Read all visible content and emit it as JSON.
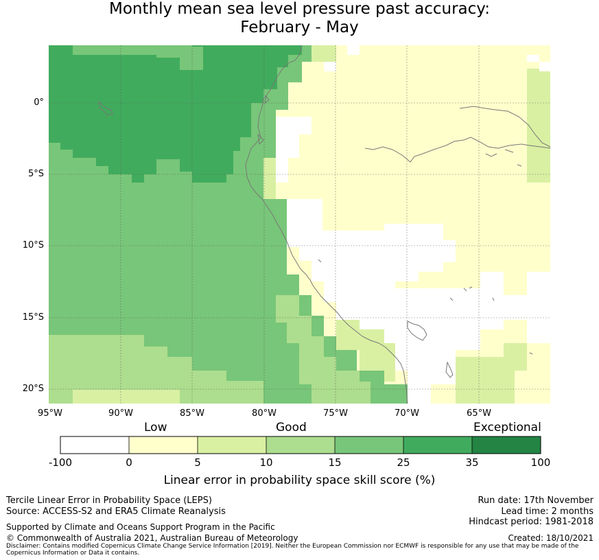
{
  "title": {
    "line1": "Monthly mean sea level pressure past accuracy:",
    "line2": "February - May"
  },
  "map": {
    "lat_range": [
      -21,
      4
    ],
    "lon_range": [
      -95,
      -60.3
    ],
    "lat_ticks": [
      "0°",
      "5°S",
      "10°S",
      "15°S",
      "20°S"
    ],
    "lon_ticks": [
      "95°W",
      "90°W",
      "85°W",
      "80°W",
      "75°W",
      "70°W",
      "65°W"
    ],
    "description_regions": "skill categories by region"
  },
  "legend": {
    "categories": [
      "Low",
      "Good",
      "Exceptional"
    ],
    "ticks": [
      "-100",
      "0",
      "5",
      "10",
      "15",
      "25",
      "35",
      "100"
    ],
    "colors": [
      "#ffffff",
      "#ffffcc",
      "#d9f0a3",
      "#addd8e",
      "#78c679",
      "#41ab5d",
      "#238443"
    ],
    "label": "Linear error in probability space skill score (%)"
  },
  "footer": {
    "left1": "Tercile Linear Error in Probability Space (LEPS)",
    "left2": "Source: ACCESS-S2 and ERA5 Climate Reanalysis",
    "left3": "Supported by Climate and Oceans Support Program in the Pacific",
    "left4": "© Commonwealth of Australia 2021, Australian Bureau of Meteorology",
    "right1": "Run date: 17th November",
    "right2": "Lead time: 2 months",
    "right3": "Hindcast period: 1981-2018",
    "right4": "Created: 18/10/2021",
    "disclaimer": "Disclaimer: Contains modified Copernicus Climate Change Service Information [2019]. Neither the European Commission nor ECMWF is responsible for any use that may be made of the Copernicus Information or Data it contains."
  }
}
